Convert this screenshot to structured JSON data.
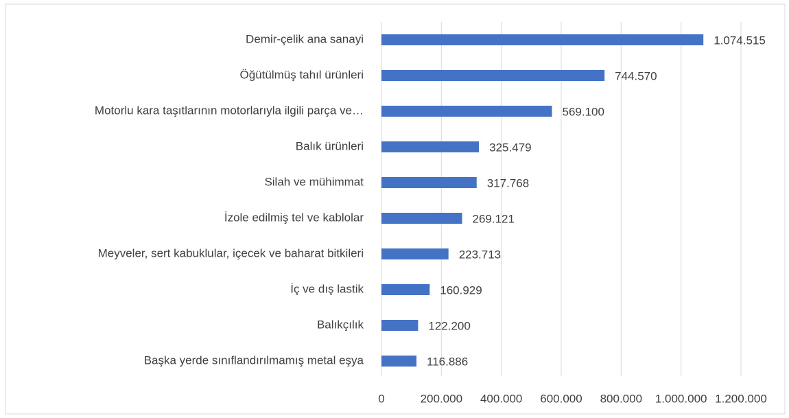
{
  "chart_data": {
    "type": "hbar",
    "categories": [
      "Demir-çelik ana sanayi",
      "Öğütülmüş tahıl ürünleri",
      "Motorlu kara taşıtlarının motorlarıyla ilgili parça ve…",
      "Balık ürünleri",
      "Silah ve mühimmat",
      "İzole edilmiş tel ve kablolar",
      "Meyveler, sert kabuklular, içecek ve baharat bitkileri",
      "İç ve dış lastik",
      "Balıkçılık",
      "Başka yerde sınıflandırılmamış metal eşya"
    ],
    "values": [
      1074515,
      744570,
      569100,
      325479,
      317768,
      269121,
      223713,
      160929,
      122200,
      116886
    ],
    "value_labels": [
      "1.074.515",
      "744.570",
      "569.100",
      "325.479",
      "317.768",
      "269.121",
      "223.713",
      "160.929",
      "122.200",
      "116.886"
    ],
    "color": "#4472c4",
    "xlim": [
      0,
      1200000
    ],
    "xticks": [
      0,
      {
        "value": 200000,
        "label": "200.000"
      },
      {
        "value": 400000,
        "label": "400.000"
      },
      {
        "value": 600000,
        "label": "600.000"
      },
      {
        "value": 800000,
        "label": "800.000"
      },
      {
        "value": 1000000,
        "label": "1.000.000"
      },
      {
        "value": 1200000,
        "label": "1.200.000"
      }
    ],
    "grid": true
  }
}
